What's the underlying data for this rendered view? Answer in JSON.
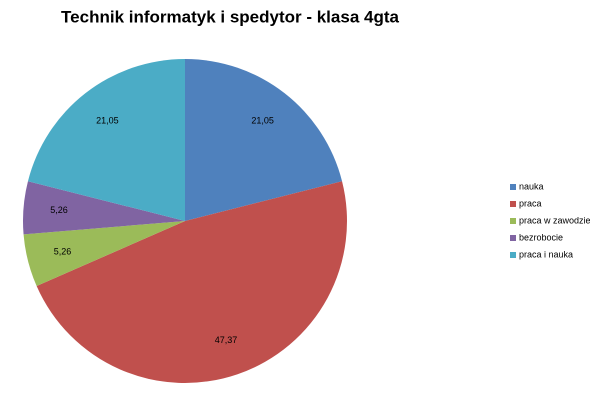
{
  "chart_data": {
    "type": "pie",
    "title": "Technik informatyk i spedytor - klasa 4gta",
    "categories": [
      "nauka",
      "praca",
      "praca w zawodzie",
      "bezrobocie",
      "praca i nauka"
    ],
    "values": [
      21.05,
      47.37,
      5.26,
      5.26,
      21.05
    ],
    "value_labels": [
      "21,05",
      "47,37",
      "5,26",
      "5,26",
      "21,05"
    ],
    "colors": [
      "#4f81bd",
      "#c0504d",
      "#9bbb59",
      "#8064a2",
      "#4bacc6"
    ],
    "legend": "right"
  }
}
